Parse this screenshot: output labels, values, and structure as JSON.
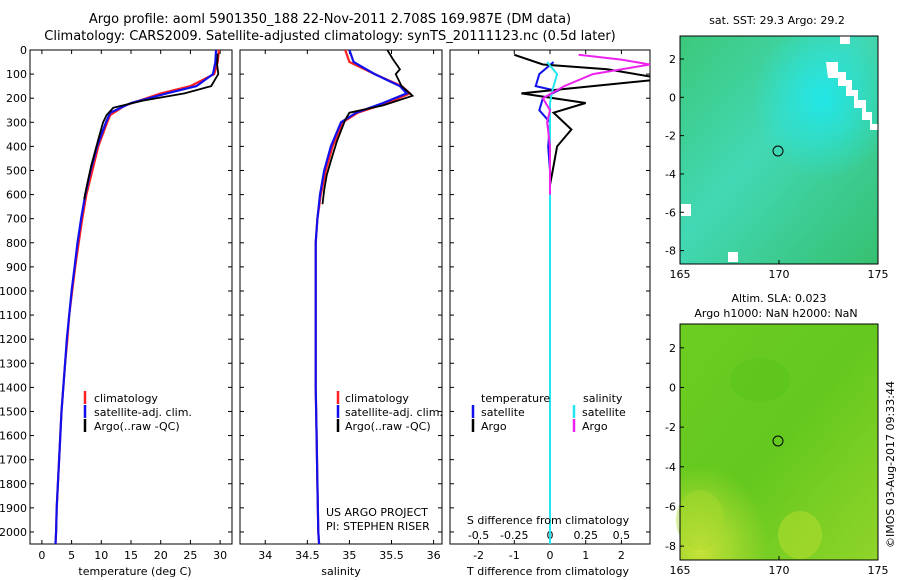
{
  "header": {
    "line1": "Argo profile: aoml 5901350_188 22-Nov-2011 2.708S 169.987E (DM data)",
    "line2": "Climatology: CARS2009. Satellite-adjusted climatology: synTS_20111123.nc (0.5d later)"
  },
  "colors": {
    "red": "#ff2020",
    "blue": "#1010ee",
    "black": "#000000",
    "cyan": "#22e6f0",
    "magenta": "#ee22ee"
  },
  "depth_ticks": [
    "0",
    "100",
    "200",
    "300",
    "400",
    "500",
    "600",
    "700",
    "800",
    "900",
    "1000",
    "1100",
    "1200",
    "1300",
    "1400",
    "1500",
    "1600",
    "1700",
    "1800",
    "1900",
    "2000"
  ],
  "notes": {
    "project": "US ARGO PROJECT",
    "pi": "PI: STEPHEN RISER"
  },
  "chart_data": [
    {
      "type": "line",
      "xlabel": "temperature (deg C)",
      "xticks": [
        "0",
        "5",
        "10",
        "15",
        "20",
        "25",
        "30"
      ],
      "xlim": [
        -2,
        32
      ],
      "ylim": [
        2050,
        0
      ],
      "legend": [
        "climatology",
        "satellite-adj. clim.",
        "Argo(..raw -QC)"
      ],
      "series": [
        {
          "name": "climatology",
          "color": "red",
          "points": [
            [
              29.8,
              0
            ],
            [
              29.6,
              50
            ],
            [
              29.0,
              100
            ],
            [
              25,
              150
            ],
            [
              20,
              180
            ],
            [
              14,
              230
            ],
            [
              11.5,
              270
            ],
            [
              11,
              300
            ],
            [
              9.5,
              400
            ],
            [
              8.5,
              500
            ],
            [
              7.5,
              600
            ],
            [
              6.8,
              700
            ],
            [
              6.2,
              800
            ],
            [
              5.6,
              900
            ],
            [
              5.1,
              1000
            ],
            [
              4.6,
              1100
            ],
            [
              4.3,
              1200
            ],
            [
              3.9,
              1300
            ],
            [
              3.6,
              1400
            ],
            [
              3.3,
              1500
            ],
            [
              3.1,
              1600
            ],
            [
              2.9,
              1700
            ],
            [
              2.7,
              1800
            ],
            [
              2.5,
              1900
            ],
            [
              2.4,
              2000
            ],
            [
              2.3,
              2050
            ]
          ]
        },
        {
          "name": "satellite-adj. clim.",
          "color": "blue",
          "points": [
            [
              29.3,
              0
            ],
            [
              29.2,
              50
            ],
            [
              28.8,
              100
            ],
            [
              26,
              150
            ],
            [
              21,
              180
            ],
            [
              15,
              220
            ],
            [
              11.5,
              260
            ],
            [
              10.8,
              300
            ],
            [
              9.3,
              400
            ],
            [
              8.2,
              500
            ],
            [
              7.3,
              600
            ],
            [
              6.6,
              700
            ],
            [
              6.0,
              800
            ],
            [
              5.5,
              900
            ],
            [
              5.0,
              1000
            ],
            [
              4.6,
              1100
            ],
            [
              4.2,
              1200
            ],
            [
              3.9,
              1300
            ],
            [
              3.6,
              1400
            ],
            [
              3.3,
              1500
            ],
            [
              3.1,
              1600
            ],
            [
              2.9,
              1700
            ],
            [
              2.7,
              1800
            ],
            [
              2.5,
              1900
            ],
            [
              2.4,
              2000
            ],
            [
              2.3,
              2050
            ]
          ]
        },
        {
          "name": "Argo(..raw -QC)",
          "color": "black",
          "points": [
            [
              29.6,
              15
            ],
            [
              29.5,
              60
            ],
            [
              29.7,
              100
            ],
            [
              28.5,
              150
            ],
            [
              24,
              180
            ],
            [
              17,
              210
            ],
            [
              12,
              240
            ],
            [
              10.9,
              270
            ],
            [
              10.3,
              300
            ],
            [
              9.4,
              380
            ],
            [
              8.3,
              480
            ],
            [
              7.6,
              560
            ],
            [
              7.1,
              620
            ]
          ]
        }
      ]
    },
    {
      "type": "line",
      "xlabel": "salinity",
      "xticks": [
        "34",
        "34.5",
        "35",
        "35.5",
        "36"
      ],
      "xlim": [
        33.7,
        36.1
      ],
      "ylim": [
        2050,
        0
      ],
      "legend": [
        "climatology",
        "satellite-adj. clim.",
        "Argo(..raw -QC)"
      ],
      "series": [
        {
          "name": "climatology",
          "color": "red",
          "points": [
            [
              34.95,
              0
            ],
            [
              35.0,
              50
            ],
            [
              35.3,
              100
            ],
            [
              35.62,
              150
            ],
            [
              35.72,
              180
            ],
            [
              35.45,
              220
            ],
            [
              35.1,
              260
            ],
            [
              34.92,
              300
            ],
            [
              34.8,
              400
            ],
            [
              34.72,
              500
            ],
            [
              34.66,
              600
            ],
            [
              34.62,
              700
            ],
            [
              34.6,
              800
            ],
            [
              34.6,
              900
            ],
            [
              34.6,
              1000
            ],
            [
              34.6,
              1200
            ],
            [
              34.6,
              1400
            ],
            [
              34.61,
              1600
            ],
            [
              34.62,
              1800
            ],
            [
              34.63,
              2000
            ],
            [
              34.64,
              2050
            ]
          ]
        },
        {
          "name": "satellite-adj. clim.",
          "color": "blue",
          "points": [
            [
              35.0,
              0
            ],
            [
              35.05,
              50
            ],
            [
              35.3,
              100
            ],
            [
              35.6,
              150
            ],
            [
              35.68,
              180
            ],
            [
              35.4,
              220
            ],
            [
              35.08,
              260
            ],
            [
              34.9,
              300
            ],
            [
              34.78,
              400
            ],
            [
              34.7,
              500
            ],
            [
              34.65,
              600
            ],
            [
              34.62,
              700
            ],
            [
              34.6,
              800
            ],
            [
              34.6,
              1000
            ],
            [
              34.6,
              1200
            ],
            [
              34.6,
              1400
            ],
            [
              34.61,
              1600
            ],
            [
              34.62,
              1800
            ],
            [
              34.63,
              2000
            ],
            [
              34.64,
              2050
            ]
          ]
        },
        {
          "name": "Argo(..raw -QC)",
          "color": "black",
          "points": [
            [
              35.45,
              0
            ],
            [
              35.52,
              40
            ],
            [
              35.6,
              80
            ],
            [
              35.55,
              100
            ],
            [
              35.62,
              150
            ],
            [
              35.75,
              190
            ],
            [
              35.4,
              230
            ],
            [
              35.0,
              260
            ],
            [
              34.95,
              290
            ],
            [
              34.85,
              380
            ],
            [
              34.78,
              460
            ],
            [
              34.73,
              520
            ],
            [
              34.7,
              580
            ],
            [
              34.68,
              640
            ]
          ]
        }
      ]
    },
    {
      "type": "line",
      "xlabel": "T difference from climatology",
      "xticks": [
        "-2",
        "-1",
        "0",
        "1",
        "2"
      ],
      "x2label": "S difference from climatology",
      "x2ticks": [
        "-0.5",
        "-0.25",
        "0",
        "0.25",
        "0.5"
      ],
      "xlim": [
        -2.8,
        2.8
      ],
      "x2lim": [
        -0.7,
        0.7
      ],
      "ylim": [
        2050,
        0
      ],
      "legend_titles": [
        "temperature",
        "salinity"
      ],
      "legend": [
        "satellite",
        "Argo",
        "satellite",
        "Argo"
      ],
      "series": [
        {
          "name": "satellite",
          "axis": "T",
          "color": "blue",
          "points": [
            [
              0.1,
              50
            ],
            [
              -0.3,
              100
            ],
            [
              -0.4,
              150
            ],
            [
              0.2,
              170
            ],
            [
              -0.2,
              200
            ],
            [
              -0.3,
              250
            ],
            [
              0.0,
              300
            ],
            [
              -0.05,
              400
            ],
            [
              0.0,
              500
            ],
            [
              0.0,
              700
            ],
            [
              0.0,
              900
            ],
            [
              0.0,
              1100
            ],
            [
              0.0,
              1300
            ],
            [
              0.0,
              1500
            ],
            [
              0.0,
              1700
            ],
            [
              0.0,
              1900
            ],
            [
              0.0,
              2050
            ]
          ]
        },
        {
          "name": "Argo",
          "axis": "T",
          "color": "black",
          "points": [
            [
              -1.0,
              20
            ],
            [
              -0.2,
              60
            ],
            [
              1.6,
              80
            ],
            [
              3.2,
              120
            ],
            [
              0.5,
              160
            ],
            [
              -0.8,
              180
            ],
            [
              1.0,
              220
            ],
            [
              0.1,
              260
            ],
            [
              0.6,
              330
            ],
            [
              0.2,
              400
            ],
            [
              0.1,
              480
            ],
            [
              0.0,
              560
            ],
            [
              0.0,
              630
            ]
          ]
        },
        {
          "name": "satellite",
          "axis": "S",
          "color": "cyan",
          "points": [
            [
              -0.02,
              50
            ],
            [
              0.05,
              100
            ],
            [
              0.02,
              160
            ],
            [
              0.0,
              220
            ],
            [
              0.0,
              300
            ],
            [
              0.0,
              500
            ],
            [
              0.0,
              800
            ],
            [
              0.0,
              1200
            ],
            [
              0.0,
              1600
            ],
            [
              0.0,
              2050
            ]
          ]
        },
        {
          "name": "Argo",
          "axis": "S",
          "color": "magenta",
          "points": [
            [
              0.2,
              20
            ],
            [
              0.5,
              40
            ],
            [
              0.7,
              60
            ],
            [
              0.3,
              100
            ],
            [
              0.1,
              150
            ],
            [
              -0.05,
              200
            ],
            [
              0.0,
              250
            ],
            [
              -0.02,
              300
            ],
            [
              0.0,
              400
            ],
            [
              0.0,
              600
            ]
          ]
        }
      ]
    },
    {
      "type": "heatmap",
      "title": "sat. SST: 29.3 Argo: 29.2",
      "xticks": [
        "165",
        "170",
        "175"
      ],
      "yticks": [
        "2",
        "0",
        "-2",
        "-4",
        "-6",
        "-8"
      ],
      "xlim": [
        165,
        175
      ],
      "ylim": [
        -8.7,
        3.2
      ],
      "marker": [
        170,
        -2.7
      ]
    },
    {
      "type": "heatmap",
      "title": "Altim. SLA: 0.023",
      "subtitle": "Argo h1000: NaN h2000: NaN",
      "xticks": [
        "165",
        "170",
        "175"
      ],
      "yticks": [
        "2",
        "0",
        "-2",
        "-4",
        "-6",
        "-8"
      ],
      "xlim": [
        165,
        175
      ],
      "ylim": [
        -8.7,
        3.2
      ],
      "marker": [
        170,
        -2.7
      ],
      "side_text": "©IMOS 03-Aug-2017 09:33:44"
    }
  ]
}
